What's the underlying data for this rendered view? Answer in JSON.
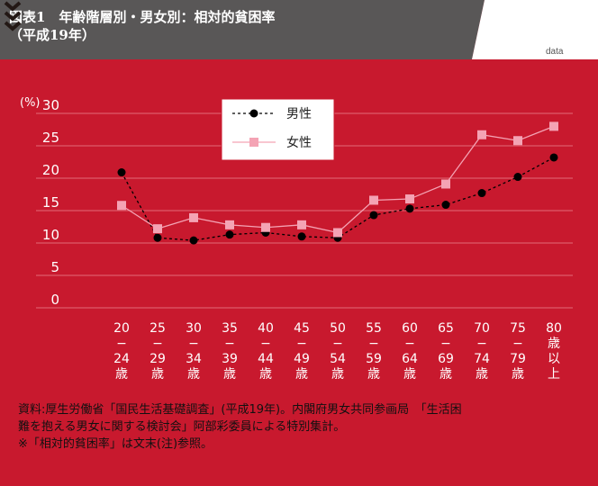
{
  "header": {
    "title_line1": "図表1　年齢階層別・男女別：相対的貧困率",
    "title_line2": "（平成19年）",
    "data_link": "data"
  },
  "icons": {
    "more": "triple-chevron-down-icon"
  },
  "colors": {
    "background": "#c8192e",
    "male": "#000000",
    "female": "#f4a3b4",
    "grid": "#e26a78",
    "header": "#595757"
  },
  "chart_data": {
    "type": "line",
    "ylabel": "(%)",
    "ylim": [
      0,
      30
    ],
    "yticks": [
      0,
      5,
      10,
      15,
      20,
      25,
      30
    ],
    "grid": true,
    "legend_position": "top-center",
    "categories": [
      "20−24歳",
      "25−29歳",
      "30−34歳",
      "35−39歳",
      "40−44歳",
      "45−49歳",
      "50−54歳",
      "55−59歳",
      "60−64歳",
      "65−69歳",
      "70−74歳",
      "75−79歳",
      "80歳以上"
    ],
    "category_label_parts": [
      [
        "20",
        "−",
        "24",
        "歳"
      ],
      [
        "25",
        "−",
        "29",
        "歳"
      ],
      [
        "30",
        "−",
        "34",
        "歳"
      ],
      [
        "35",
        "−",
        "39",
        "歳"
      ],
      [
        "40",
        "−",
        "44",
        "歳"
      ],
      [
        "45",
        "−",
        "49",
        "歳"
      ],
      [
        "50",
        "−",
        "54",
        "歳"
      ],
      [
        "55",
        "−",
        "59",
        "歳"
      ],
      [
        "60",
        "−",
        "64",
        "歳"
      ],
      [
        "65",
        "−",
        "69",
        "歳"
      ],
      [
        "70",
        "−",
        "74",
        "歳"
      ],
      [
        "75",
        "−",
        "79",
        "歳"
      ],
      [
        "80",
        "歳",
        "以",
        "上"
      ]
    ],
    "series": [
      {
        "name": "男性",
        "style": "dashed",
        "marker": "circle",
        "color": "#000000",
        "values": [
          20.9,
          10.8,
          10.4,
          11.3,
          11.6,
          11.0,
          10.8,
          14.3,
          15.3,
          15.9,
          17.7,
          20.2,
          23.2
        ]
      },
      {
        "name": "女性",
        "style": "solid",
        "marker": "square",
        "color": "#f4a3b4",
        "values": [
          15.8,
          12.2,
          13.9,
          12.8,
          12.4,
          12.8,
          11.6,
          16.6,
          16.8,
          19.1,
          26.7,
          25.8,
          28.0
        ]
      }
    ]
  },
  "source": {
    "line1": "資料:厚生労働省「国民生活基礎調査」(平成19年)。内閣府男女共同参画局　「生活困",
    "line2": "難を抱える男女に関する検討会」阿部彩委員による特別集計。",
    "line3": "※「相対的貧困率」は文末(注)参照。"
  }
}
